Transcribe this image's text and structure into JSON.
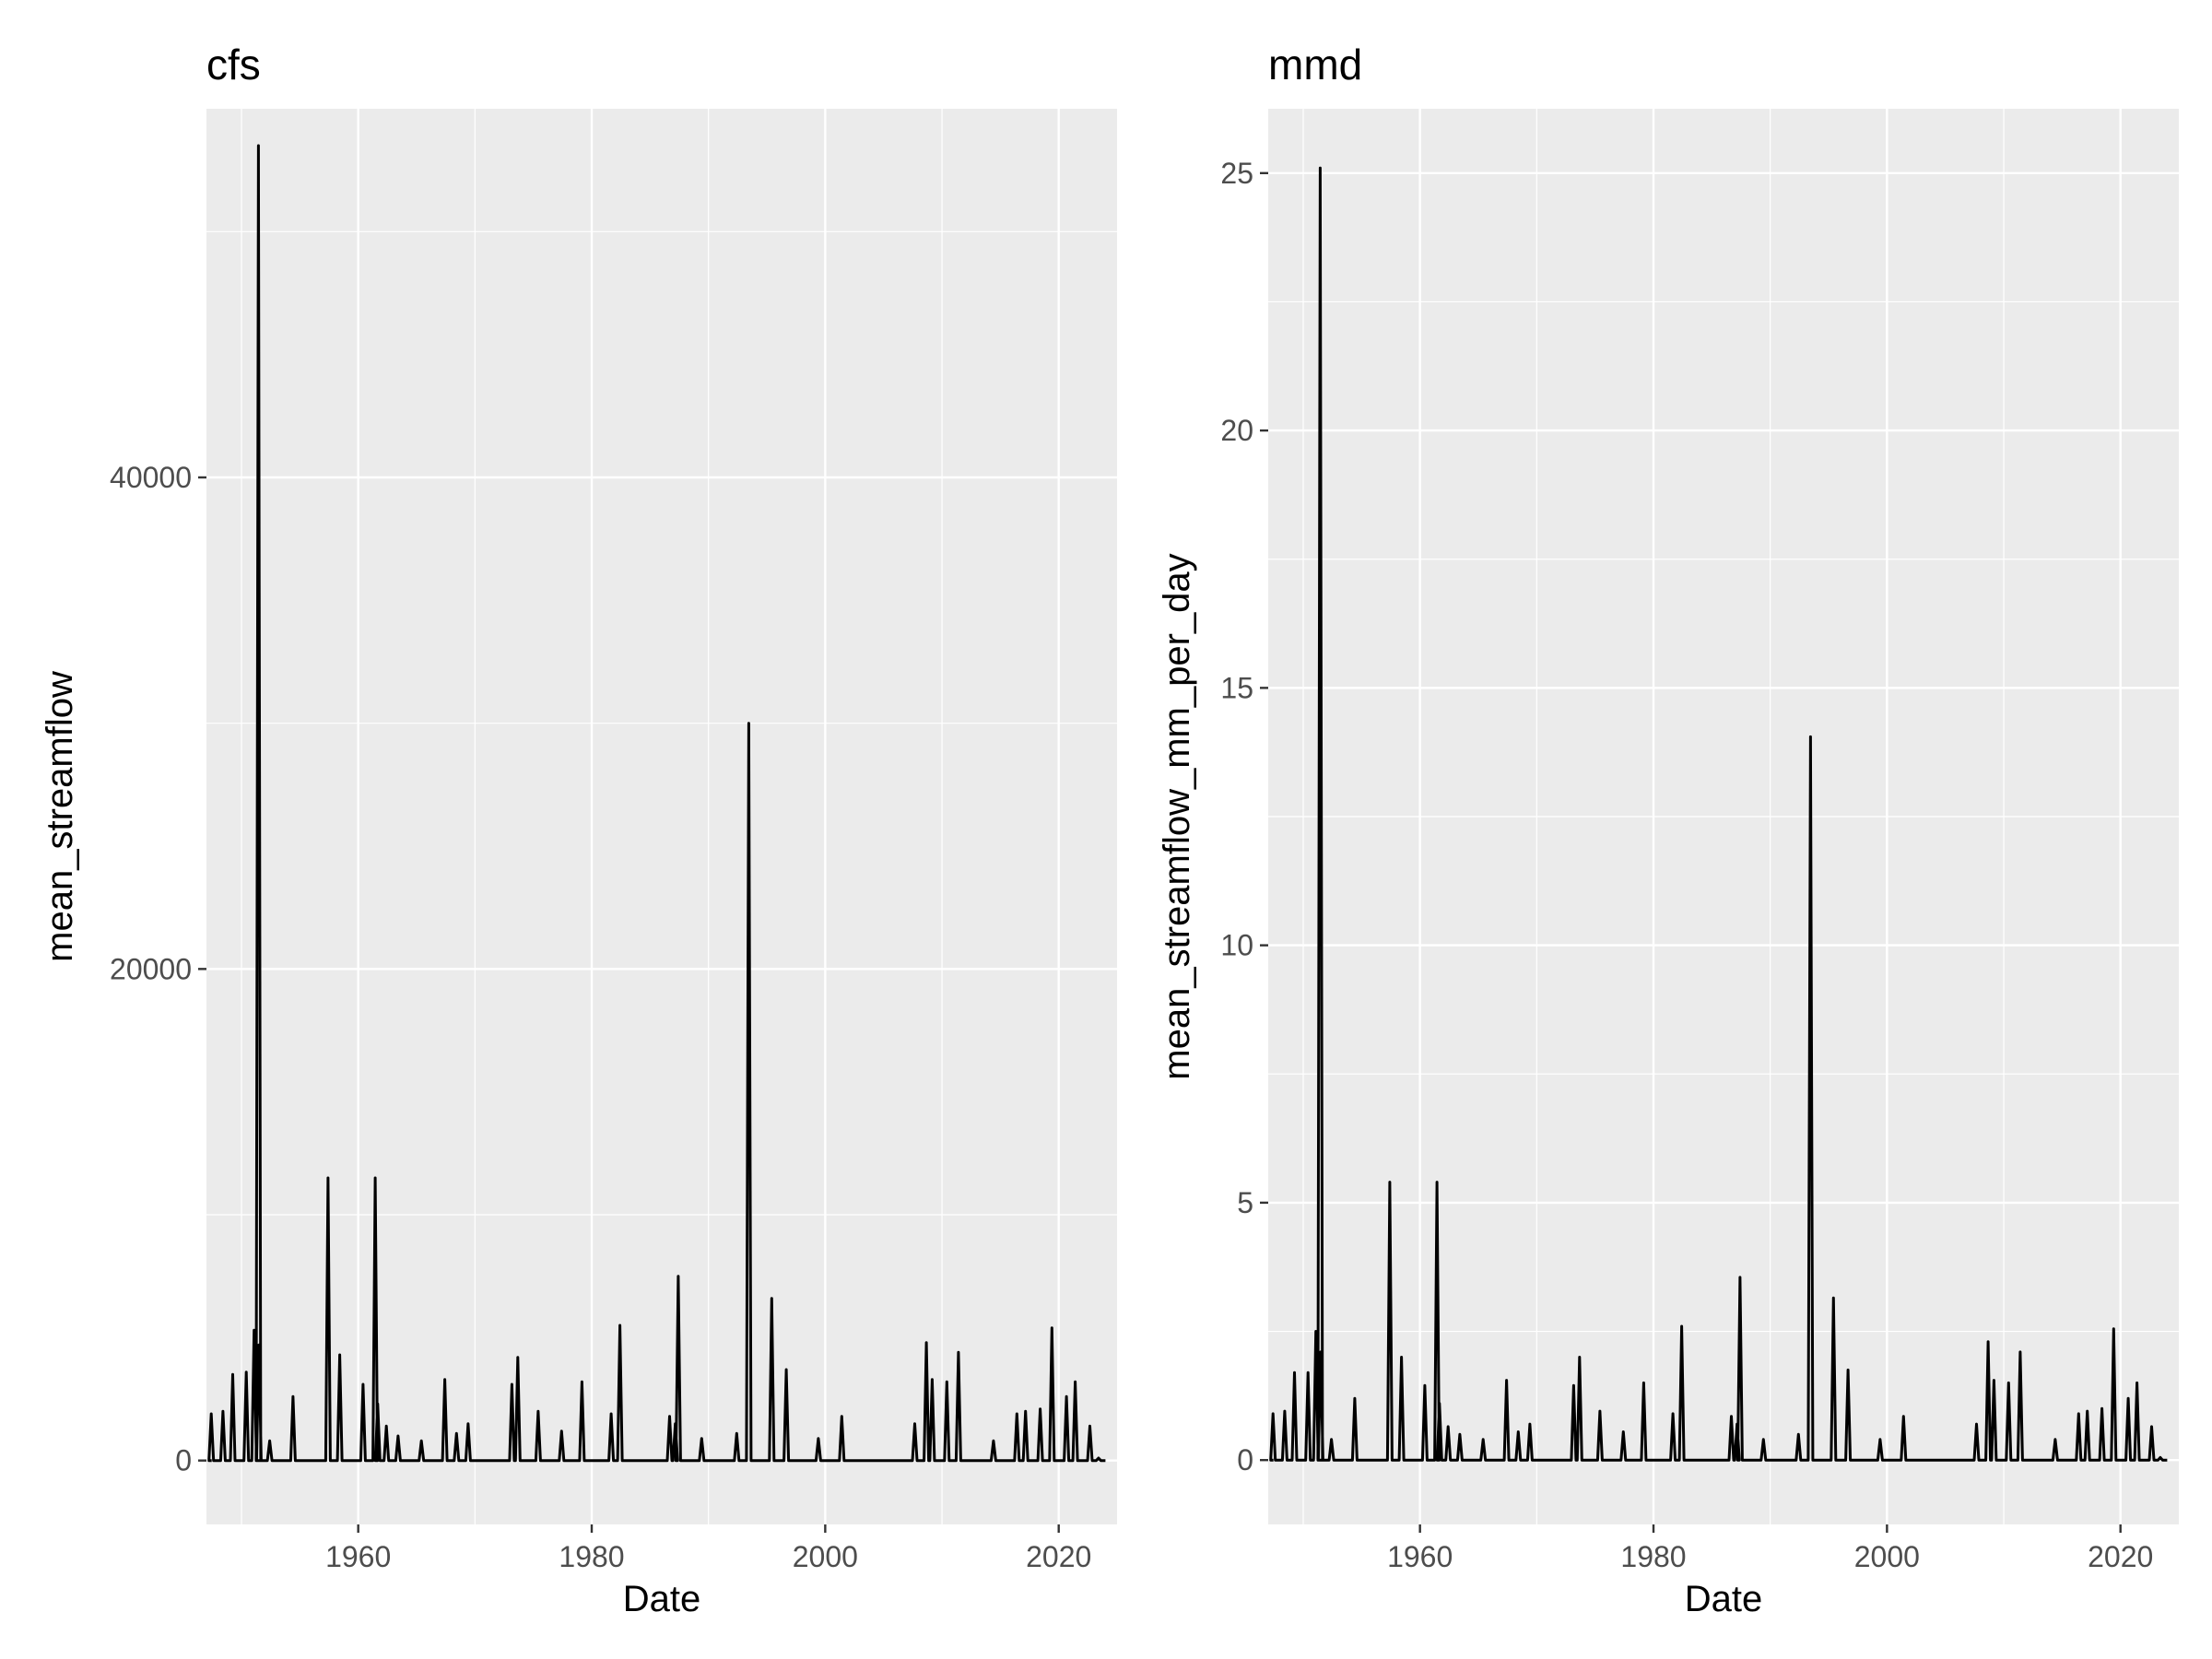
{
  "chart_data": [
    {
      "type": "line",
      "title": "cfs",
      "xlabel": "Date",
      "ylabel": "mean_streamflow",
      "xlim": [
        "1947-01-01",
        "2024-12-31"
      ],
      "ylim": [
        -2600,
        55000
      ],
      "x_ticks": [
        "1960",
        "1980",
        "2000",
        "2020"
      ],
      "y_ticks": [
        "0",
        "20000",
        "40000"
      ],
      "grid": true,
      "background": "#EBEBEB",
      "line_color": "#000000",
      "series": [
        {
          "x": [
            "1947-06-01",
            "1948-06-01",
            "1949-04-01",
            "1950-06-01",
            "1951-02-01",
            "1951-06-15",
            "1951-07-01",
            "1952-06-01",
            "1954-06-01",
            "1957-06-01",
            "1958-06-01",
            "1960-06-01",
            "1961-06-15",
            "1961-09-01",
            "1962-06-01",
            "1963-06-01",
            "1965-06-01",
            "1967-06-01",
            "1968-06-01",
            "1969-06-01",
            "1973-03-01",
            "1973-09-01",
            "1975-06-01",
            "1977-06-01",
            "1979-03-01",
            "1981-09-01",
            "1982-06-01",
            "1986-09-01",
            "1987-03-01",
            "1987-06-01",
            "1989-06-01",
            "1992-06-01",
            "1993-06-15",
            "1995-06-01",
            "1996-09-01",
            "1999-06-01",
            "2001-06-01",
            "2007-09-01",
            "2008-09-01",
            "2009-03-01",
            "2010-06-01",
            "2011-06-01",
            "2014-06-01",
            "2016-06-01",
            "2017-03-01",
            "2018-06-01",
            "2019-06-01",
            "2020-09-01",
            "2021-06-01",
            "2022-09-01",
            "2023-06-01"
          ],
          "y": [
            1900,
            2000,
            3500,
            3600,
            5300,
            53500,
            4700,
            800,
            2600,
            11500,
            4300,
            3100,
            11500,
            2300,
            1400,
            1000,
            800,
            3300,
            1100,
            1500,
            3100,
            4200,
            2000,
            1200,
            3200,
            1900,
            5500,
            1800,
            1500,
            7500,
            900,
            1100,
            30000,
            6600,
            3700,
            900,
            1800,
            1500,
            4800,
            3300,
            3200,
            4400,
            800,
            1900,
            2000,
            2100,
            5400,
            2600,
            3200,
            1400,
            100
          ]
        }
      ]
    },
    {
      "type": "line",
      "title": "mmd",
      "xlabel": "Date",
      "ylabel": "mean_streamflow_mm_per_day",
      "xlim": [
        "1947-01-01",
        "2024-12-31"
      ],
      "ylim": [
        -1.25,
        26.25
      ],
      "x_ticks": [
        "1960",
        "1980",
        "2000",
        "2020"
      ],
      "y_ticks": [
        "0",
        "5",
        "10",
        "15",
        "20",
        "25"
      ],
      "grid": true,
      "background": "#EBEBEB",
      "line_color": "#000000",
      "series": [
        {
          "x": [
            "1947-06-01",
            "1948-06-01",
            "1949-04-01",
            "1950-06-01",
            "1951-02-01",
            "1951-06-15",
            "1951-07-01",
            "1952-06-01",
            "1954-06-01",
            "1957-06-01",
            "1958-06-01",
            "1960-06-01",
            "1961-06-15",
            "1961-09-01",
            "1962-06-01",
            "1963-06-01",
            "1965-06-01",
            "1967-06-01",
            "1968-06-01",
            "1969-06-01",
            "1973-03-01",
            "1973-09-01",
            "1975-06-01",
            "1977-06-01",
            "1979-03-01",
            "1981-09-01",
            "1982-06-01",
            "1986-09-01",
            "1987-03-01",
            "1987-06-01",
            "1989-06-01",
            "1992-06-01",
            "1993-06-15",
            "1995-06-01",
            "1996-09-01",
            "1999-06-01",
            "2001-06-01",
            "2007-09-01",
            "2008-09-01",
            "2009-03-01",
            "2010-06-01",
            "2011-06-01",
            "2014-06-01",
            "2016-06-01",
            "2017-03-01",
            "2018-06-01",
            "2019-06-01",
            "2020-09-01",
            "2021-06-01",
            "2022-09-01",
            "2023-06-01"
          ],
          "y": [
            0.9,
            0.95,
            1.7,
            1.7,
            2.5,
            25.1,
            2.1,
            0.4,
            1.2,
            5.4,
            2.0,
            1.45,
            5.4,
            1.1,
            0.65,
            0.5,
            0.4,
            1.55,
            0.55,
            0.7,
            1.45,
            2.0,
            0.95,
            0.55,
            1.5,
            0.9,
            2.6,
            0.85,
            0.7,
            3.55,
            0.4,
            0.5,
            14.05,
            3.15,
            1.75,
            0.4,
            0.85,
            0.7,
            2.3,
            1.55,
            1.5,
            2.1,
            0.4,
            0.9,
            0.95,
            1.0,
            2.55,
            1.2,
            1.5,
            0.65,
            0.05
          ]
        }
      ]
    }
  ]
}
